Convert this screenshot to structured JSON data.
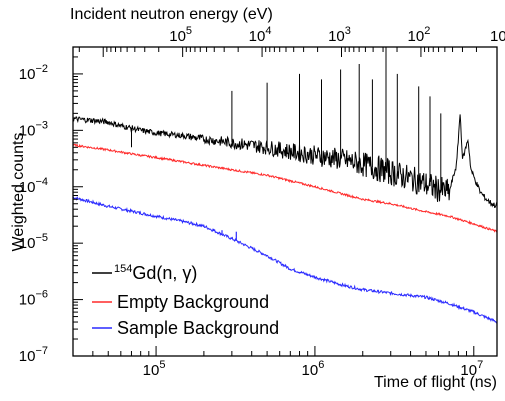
{
  "chart_data": {
    "type": "line",
    "title": "",
    "xlabel": "Time of flight (ns)",
    "ylabel": "Weighted counts",
    "x2label": "Incident neutron energy (eV)",
    "xscale": "log",
    "yscale": "log",
    "xlim": [
      30000,
      14000000
    ],
    "ylim": [
      1e-07,
      0.03
    ],
    "grid": false,
    "legend_position": "bottom-left",
    "x_ticks": [
      {
        "value": 100000,
        "base": "10",
        "exp": "5"
      },
      {
        "value": 1000000,
        "base": "10",
        "exp": "6"
      },
      {
        "value": 10000000,
        "base": "10",
        "exp": "7"
      }
    ],
    "y_ticks": [
      {
        "value": 1e-07,
        "base": "10",
        "exp": "−7"
      },
      {
        "value": 1e-06,
        "base": "10",
        "exp": "−6"
      },
      {
        "value": 1e-05,
        "base": "10",
        "exp": "−5"
      },
      {
        "value": 0.0001,
        "base": "10",
        "exp": "−4"
      },
      {
        "value": 0.001,
        "base": "10",
        "exp": "−3"
      },
      {
        "value": 0.01,
        "base": "10",
        "exp": "−2"
      }
    ],
    "x2_ticks": [
      {
        "value": 100000,
        "base": "10",
        "exp": "5"
      },
      {
        "value": 10000,
        "base": "10",
        "exp": "4"
      },
      {
        "value": 1000,
        "base": "10",
        "exp": "3"
      },
      {
        "value": 100,
        "base": "10",
        "exp": "2"
      },
      {
        "value": 10,
        "base": "10",
        "exp": ""
      }
    ],
    "series": [
      {
        "label_sup": "154",
        "label_main": "Gd(n, γ)",
        "color": "#000000",
        "x": [
          30000,
          40000,
          50000,
          60000,
          70000,
          80000,
          100000,
          150000,
          200000,
          300000,
          500000,
          700000,
          1000000,
          1500000,
          2000000,
          2500000,
          3000000,
          4000000,
          5000000,
          6000000,
          7000000,
          7800000,
          8200000,
          8500000,
          9200000,
          9600000,
          10000000,
          11000000,
          12000000,
          13000000,
          14000000
        ],
        "y": [
          0.0016,
          0.0015,
          0.0014,
          0.0012,
          0.0011,
          0.001,
          0.0009,
          0.0008,
          0.0007,
          0.0006,
          0.0005,
          0.00042,
          0.00036,
          0.0003,
          0.00025,
          0.00021,
          0.00018,
          0.00014,
          0.00011,
          9e-05,
          8e-05,
          0.00025,
          0.002,
          0.0003,
          0.0007,
          0.0002,
          0.00015,
          8e-05,
          6e-05,
          5e-05,
          4.5e-05
        ],
        "peaks": [
          {
            "x": 70000,
            "y": 0.0005
          },
          {
            "x": 300000,
            "y": 0.005
          },
          {
            "x": 500000,
            "y": 0.007
          },
          {
            "x": 800000,
            "y": 0.01
          },
          {
            "x": 1100000,
            "y": 0.008
          },
          {
            "x": 1450000,
            "y": 0.012
          },
          {
            "x": 1900000,
            "y": 0.015
          },
          {
            "x": 2300000,
            "y": 0.008
          },
          {
            "x": 2800000,
            "y": 0.03
          },
          {
            "x": 3300000,
            "y": 0.01
          },
          {
            "x": 4500000,
            "y": 0.006
          },
          {
            "x": 5300000,
            "y": 0.004
          },
          {
            "x": 6200000,
            "y": 0.002
          }
        ]
      },
      {
        "label": "Empty Background",
        "color": "#ff2a2a",
        "x": [
          30000,
          50000,
          80000,
          100000,
          200000,
          300000,
          500000,
          1000000,
          2000000,
          3000000,
          5000000,
          7000000,
          10000000,
          14000000
        ],
        "y": [
          0.00055,
          0.00045,
          0.00036,
          0.00033,
          0.00024,
          0.0002,
          0.00016,
          0.0001,
          6e-05,
          5e-05,
          3.6e-05,
          3e-05,
          2.2e-05,
          1.6e-05
        ]
      },
      {
        "label": "Sample Background",
        "color": "#2a2aff",
        "x": [
          30000,
          50000,
          100000,
          150000,
          200000,
          300000,
          500000,
          700000,
          1000000,
          1500000,
          2000000,
          3000000,
          5000000,
          7000000,
          10000000,
          14000000
        ],
        "y": [
          6.5e-05,
          4.5e-05,
          3e-05,
          2.4e-05,
          2e-05,
          1.2e-05,
          6e-06,
          3.5e-06,
          2.5e-06,
          1.8e-06,
          1.5e-06,
          1.3e-06,
          1.1e-06,
          8.5e-07,
          6e-07,
          4e-07
        ],
        "spikes": [
          {
            "x": 230000,
            "y": 1.8e-05
          },
          {
            "x": 260000,
            "y": 1.7e-05
          },
          {
            "x": 320000,
            "y": 1.6e-05
          }
        ]
      }
    ]
  }
}
